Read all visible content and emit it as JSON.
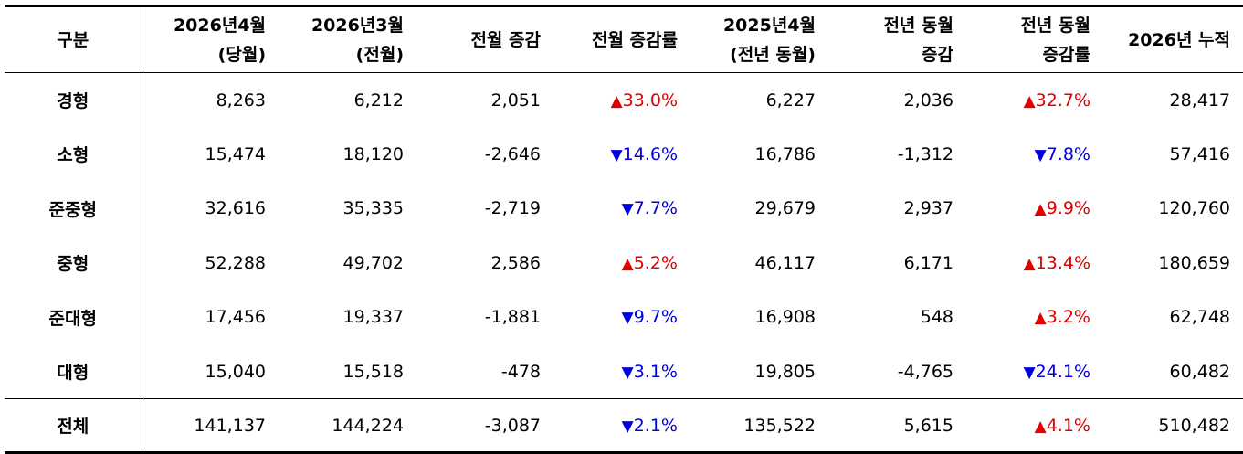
{
  "header": {
    "category": "구분",
    "cur_month_1": "2026년4월",
    "cur_month_2": "(당월)",
    "prev_month_1": "2026년3월",
    "prev_month_2": "(전월)",
    "mom_change": "전월 증감",
    "mom_rate": "전월 증감률",
    "last_year_1": "2025년4월",
    "last_year_2": "(전년 동월)",
    "yoy_change_1": "전년 동월",
    "yoy_change_2": "증감",
    "yoy_rate_1": "전년 동월",
    "yoy_rate_2": "증감률",
    "ytd": "2026년 누적"
  },
  "arrows": {
    "up": "▲",
    "down": "▼"
  },
  "colors": {
    "up": "#e00000",
    "down": "#0000e0"
  },
  "rows": [
    {
      "cat": "경형",
      "cur": "8,263",
      "prev": "6,212",
      "mom": "2,051",
      "mom_dir": "up",
      "mom_rate": "33.0%",
      "ly": "6,227",
      "yoy": "2,036",
      "yoy_dir": "up",
      "yoy_rate": "32.7%",
      "ytd": "28,417"
    },
    {
      "cat": "소형",
      "cur": "15,474",
      "prev": "18,120",
      "mom": "-2,646",
      "mom_dir": "down",
      "mom_rate": "14.6%",
      "ly": "16,786",
      "yoy": "-1,312",
      "yoy_dir": "down",
      "yoy_rate": "7.8%",
      "ytd": "57,416"
    },
    {
      "cat": "준중형",
      "cur": "32,616",
      "prev": "35,335",
      "mom": "-2,719",
      "mom_dir": "down",
      "mom_rate": "7.7%",
      "ly": "29,679",
      "yoy": "2,937",
      "yoy_dir": "up",
      "yoy_rate": "9.9%",
      "ytd": "120,760"
    },
    {
      "cat": "중형",
      "cur": "52,288",
      "prev": "49,702",
      "mom": "2,586",
      "mom_dir": "up",
      "mom_rate": "5.2%",
      "ly": "46,117",
      "yoy": "6,171",
      "yoy_dir": "up",
      "yoy_rate": "13.4%",
      "ytd": "180,659"
    },
    {
      "cat": "준대형",
      "cur": "17,456",
      "prev": "19,337",
      "mom": "-1,881",
      "mom_dir": "down",
      "mom_rate": "9.7%",
      "ly": "16,908",
      "yoy": "548",
      "yoy_dir": "up",
      "yoy_rate": "3.2%",
      "ytd": "62,748"
    },
    {
      "cat": "대형",
      "cur": "15,040",
      "prev": "15,518",
      "mom": "-478",
      "mom_dir": "down",
      "mom_rate": "3.1%",
      "ly": "19,805",
      "yoy": "-4,765",
      "yoy_dir": "down",
      "yoy_rate": "24.1%",
      "ytd": "60,482"
    }
  ],
  "total": {
    "cat": "전체",
    "cur": "141,137",
    "prev": "144,224",
    "mom": "-3,087",
    "mom_dir": "down",
    "mom_rate": "2.1%",
    "ly": "135,522",
    "yoy": "5,615",
    "yoy_dir": "up",
    "yoy_rate": "4.1%",
    "ytd": "510,482"
  }
}
